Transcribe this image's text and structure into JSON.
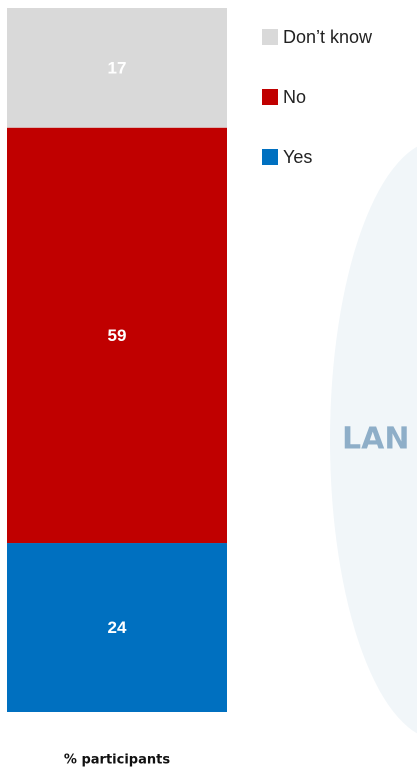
{
  "chart_data": {
    "type": "stacked_bar",
    "categories": [
      null
    ],
    "series": [
      {
        "name": "Yes",
        "color": "#0070c0",
        "values": [
          24
        ]
      },
      {
        "name": "No",
        "color": "#c00000",
        "values": [
          59
        ]
      },
      {
        "name": "Don’t know",
        "color": "#d9d9d9",
        "values": [
          17
        ]
      }
    ],
    "ylim": [
      0,
      100
    ],
    "x_label": "% participants",
    "watermark": "LAN",
    "legend": "top-right"
  }
}
